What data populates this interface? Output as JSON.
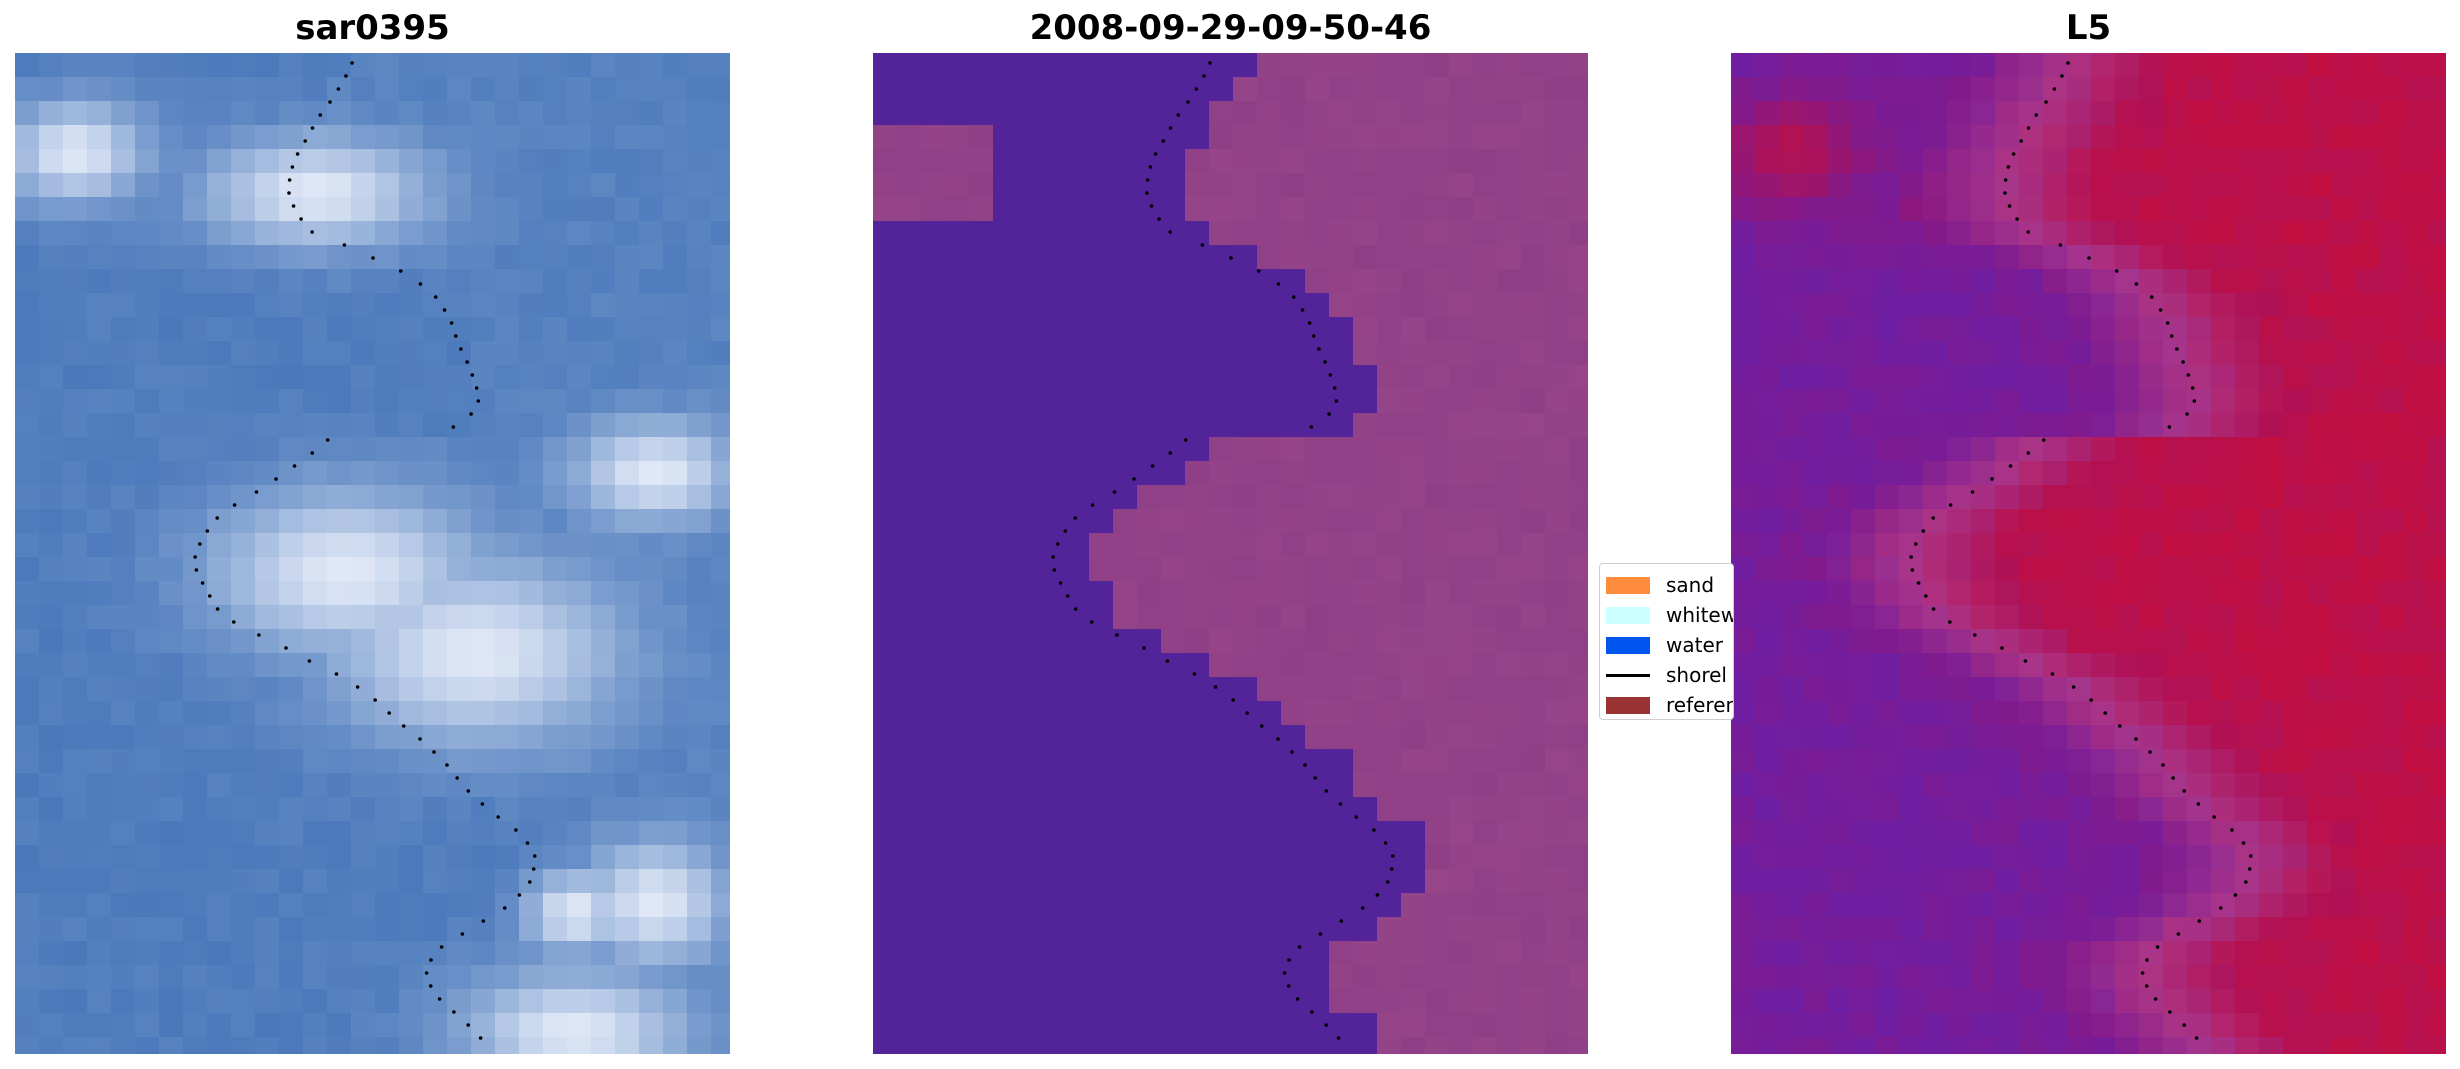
{
  "panels": [
    {
      "title": "sar0395",
      "kind": "rgb"
    },
    {
      "title": "2008-09-29-09-50-46",
      "kind": "classified"
    },
    {
      "title": "L5",
      "kind": "index"
    }
  ],
  "legend": {
    "items": [
      {
        "label": "sand",
        "color": "#ff8c3c",
        "kind": "patch"
      },
      {
        "label": "whitew",
        "color": "#ccffff",
        "kind": "patch"
      },
      {
        "label": "water",
        "color": "#0055ee",
        "kind": "patch"
      },
      {
        "label": "shorel",
        "color": "#000000",
        "kind": "line"
      },
      {
        "label": "referen",
        "color": "#993333",
        "kind": "patch"
      }
    ]
  },
  "colors": {
    "rgb_base": "#4a78bb",
    "rgb_cloud": "#e8eefa",
    "class_water": "#53239a",
    "class_land": "#8e3f86",
    "class_land_light": "#c06495",
    "index_low": "#6e1ea3",
    "index_high": "#c20e40",
    "shoreline_dots": "#000000"
  }
}
